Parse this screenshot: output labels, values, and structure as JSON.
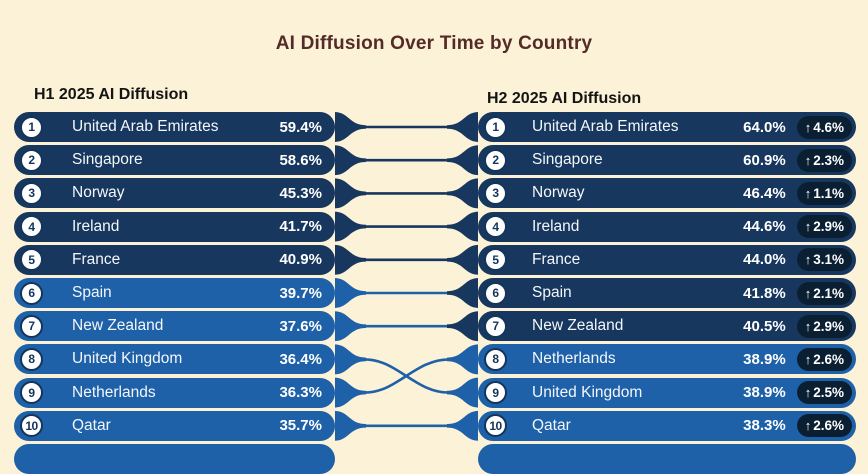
{
  "title": "AI Diffusion Over Time by Country",
  "left_header": "H1 2025 AI Diffusion",
  "right_header": "H2 2025 AI Diffusion",
  "up_arrow": "↑",
  "tier_threshold": 40,
  "colors": {
    "background": "#fbf2d7",
    "title_text": "#552b28",
    "header_text": "#141414",
    "tier_dark": "#17375f",
    "tier_light": "#1e61a8",
    "badge_bg": "#0b1f33",
    "circle_bg": "#ffffff",
    "rank_text": "#13355a",
    "row_text": "#ffffff"
  },
  "chart_data": {
    "type": "table",
    "title": "AI Diffusion Over Time by Country",
    "periods": [
      "H1 2025 AI Diffusion",
      "H2 2025 AI Diffusion"
    ],
    "value_format": "percent",
    "h1": [
      {
        "rank": 1,
        "country": "United Arab Emirates",
        "value": 59.4
      },
      {
        "rank": 2,
        "country": "Singapore",
        "value": 58.6
      },
      {
        "rank": 3,
        "country": "Norway",
        "value": 45.3
      },
      {
        "rank": 4,
        "country": "Ireland",
        "value": 41.7
      },
      {
        "rank": 5,
        "country": "France",
        "value": 40.9
      },
      {
        "rank": 6,
        "country": "Spain",
        "value": 39.7
      },
      {
        "rank": 7,
        "country": "New Zealand",
        "value": 37.6
      },
      {
        "rank": 8,
        "country": "United Kingdom",
        "value": 36.4
      },
      {
        "rank": 9,
        "country": "Netherlands",
        "value": 36.3
      },
      {
        "rank": 10,
        "country": "Qatar",
        "value": 35.7
      }
    ],
    "h2": [
      {
        "rank": 1,
        "country": "United Arab Emirates",
        "value": 64.0,
        "change": 4.6
      },
      {
        "rank": 2,
        "country": "Singapore",
        "value": 60.9,
        "change": 2.3
      },
      {
        "rank": 3,
        "country": "Norway",
        "value": 46.4,
        "change": 1.1
      },
      {
        "rank": 4,
        "country": "Ireland",
        "value": 44.6,
        "change": 2.9
      },
      {
        "rank": 5,
        "country": "France",
        "value": 44.0,
        "change": 3.1
      },
      {
        "rank": 6,
        "country": "Spain",
        "value": 41.8,
        "change": 2.1
      },
      {
        "rank": 7,
        "country": "New Zealand",
        "value": 40.5,
        "change": 2.9
      },
      {
        "rank": 8,
        "country": "Netherlands",
        "value": 38.9,
        "change": 2.6
      },
      {
        "rank": 9,
        "country": "United Kingdom",
        "value": 38.9,
        "change": 2.5
      },
      {
        "rank": 10,
        "country": "Qatar",
        "value": 38.3,
        "change": 2.6
      }
    ],
    "links": [
      [
        0,
        0
      ],
      [
        1,
        1
      ],
      [
        2,
        2
      ],
      [
        3,
        3
      ],
      [
        4,
        4
      ],
      [
        5,
        5
      ],
      [
        6,
        6
      ],
      [
        7,
        8
      ],
      [
        8,
        7
      ],
      [
        9,
        9
      ]
    ]
  }
}
